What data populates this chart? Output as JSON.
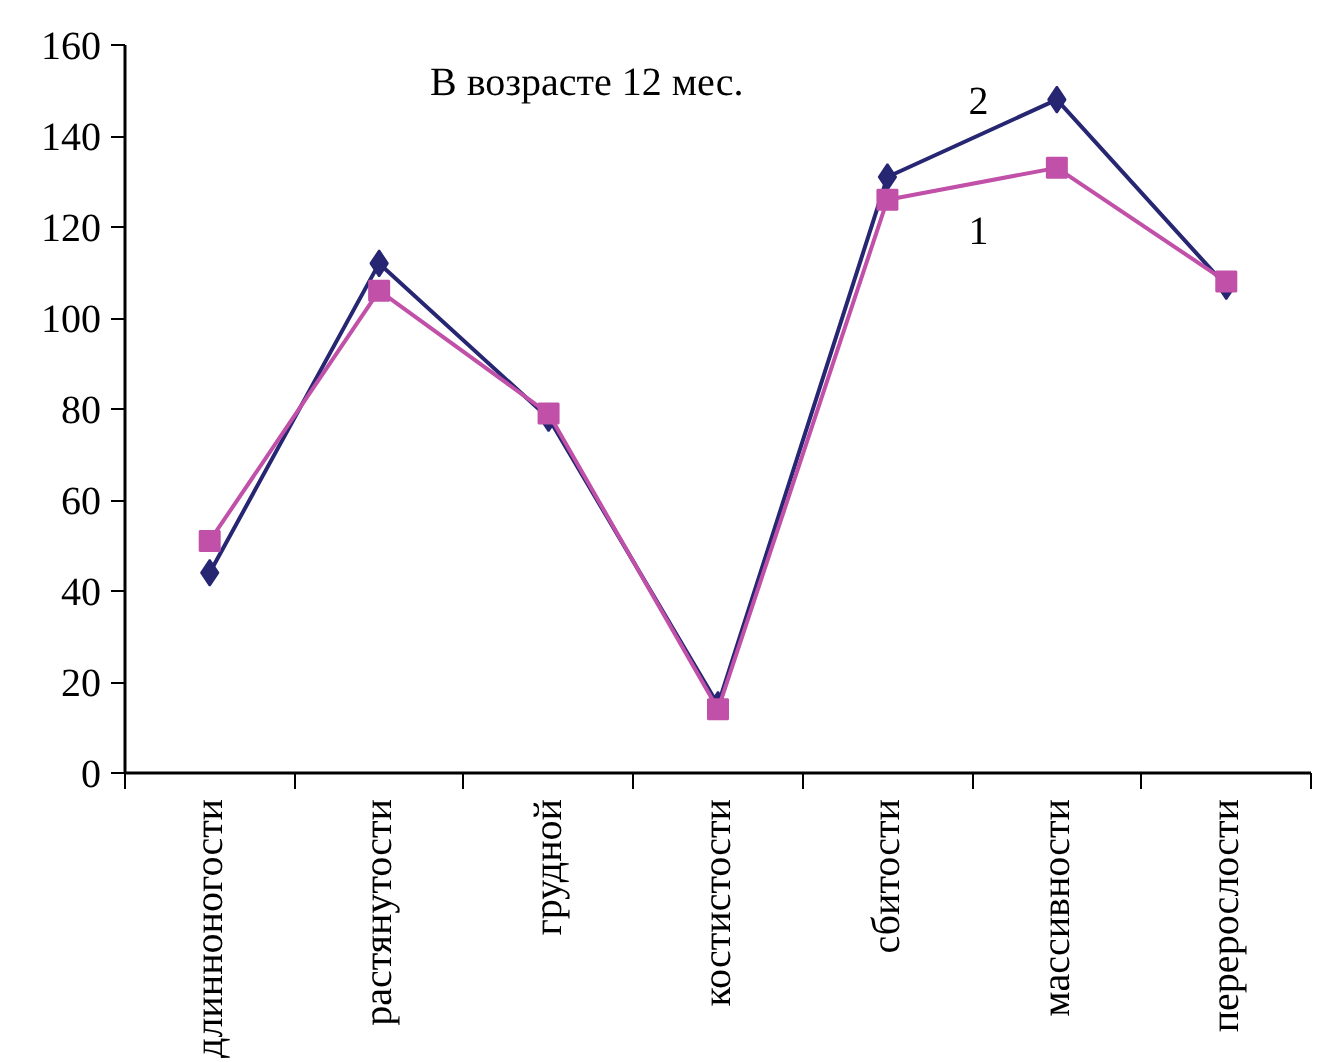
{
  "chart_data": {
    "type": "line",
    "title": "В возрасте 12 мес.",
    "categories": [
      "длинноногости",
      "растянутости",
      "грудной",
      "костистости",
      "сбитости",
      "массивности",
      "перерослости"
    ],
    "series": [
      {
        "name": "2",
        "color": "#262673",
        "marker": "diamond",
        "values": [
          44,
          112,
          78,
          15,
          131,
          148,
          107
        ]
      },
      {
        "name": "1",
        "color": "#c050a8",
        "marker": "square",
        "values": [
          51,
          106,
          79,
          14,
          126,
          133,
          108
        ]
      }
    ],
    "ylim": [
      0,
      160
    ],
    "yticks": [
      0,
      20,
      40,
      60,
      80,
      100,
      120,
      140,
      160
    ],
    "grid": false,
    "legend": false,
    "line_style": "solid"
  }
}
